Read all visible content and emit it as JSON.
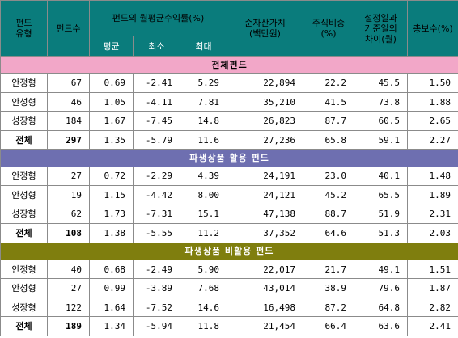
{
  "headers": {
    "fund_type": [
      "펀드",
      "유형"
    ],
    "fund_count": "펀드수",
    "monthly_return": "펀드의 월평균수익률(%)",
    "avg": "평균",
    "min": "최소",
    "max": "최대",
    "net_assets": [
      "순자산가치",
      "(백만원)"
    ],
    "stock_ratio": [
      "주식비중",
      "(%)"
    ],
    "setup_diff": [
      "설정일과",
      "기준일의",
      "차이(월)"
    ],
    "total_fee": "총보수(%)"
  },
  "sections": [
    {
      "title": "전체펀드",
      "rows": [
        {
          "type": "안정형",
          "count": "67",
          "avg": "0.69",
          "min": "-2.41",
          "max": "5.29",
          "nav": "22,894",
          "stock": "22.2",
          "months": "45.5",
          "fee": "1.50"
        },
        {
          "type": "안성형",
          "count": "46",
          "avg": "1.05",
          "min": "-4.11",
          "max": "7.81",
          "nav": "35,210",
          "stock": "41.5",
          "months": "73.8",
          "fee": "1.88"
        },
        {
          "type": "성장형",
          "count": "184",
          "avg": "1.67",
          "min": "-7.45",
          "max": "14.8",
          "nav": "26,823",
          "stock": "87.7",
          "months": "60.5",
          "fee": "2.65"
        },
        {
          "type": "전체",
          "count": "297",
          "avg": "1.35",
          "min": "-5.79",
          "max": "11.6",
          "nav": "27,236",
          "stock": "65.8",
          "months": "59.1",
          "fee": "2.27",
          "total": true
        }
      ]
    },
    {
      "title": "파생상품 활용 펀드",
      "rows": [
        {
          "type": "안정형",
          "count": "27",
          "avg": "0.72",
          "min": "-2.29",
          "max": "4.39",
          "nav": "24,191",
          "stock": "23.0",
          "months": "40.1",
          "fee": "1.48"
        },
        {
          "type": "안성형",
          "count": "19",
          "avg": "1.15",
          "min": "-4.42",
          "max": "8.00",
          "nav": "24,121",
          "stock": "45.2",
          "months": "65.5",
          "fee": "1.89"
        },
        {
          "type": "성장형",
          "count": "62",
          "avg": "1.73",
          "min": "-7.31",
          "max": "15.1",
          "nav": "47,138",
          "stock": "88.7",
          "months": "51.9",
          "fee": "2.31"
        },
        {
          "type": "전체",
          "count": "108",
          "avg": "1.38",
          "min": "-5.55",
          "max": "11.2",
          "nav": "37,352",
          "stock": "64.6",
          "months": "51.3",
          "fee": "2.03",
          "total": true
        }
      ]
    },
    {
      "title": "파생상품 비활용 펀드",
      "rows": [
        {
          "type": "안정형",
          "count": "40",
          "avg": "0.68",
          "min": "-2.49",
          "max": "5.90",
          "nav": "22,017",
          "stock": "21.7",
          "months": "49.1",
          "fee": "1.51"
        },
        {
          "type": "안성형",
          "count": "27",
          "avg": "0.99",
          "min": "-3.89",
          "max": "7.68",
          "nav": "43,014",
          "stock": "38.9",
          "months": "79.6",
          "fee": "1.87"
        },
        {
          "type": "성장형",
          "count": "122",
          "avg": "1.64",
          "min": "-7.52",
          "max": "14.6",
          "nav": "16,498",
          "stock": "87.2",
          "months": "64.8",
          "fee": "2.82"
        },
        {
          "type": "전체",
          "count": "189",
          "avg": "1.34",
          "min": "-5.94",
          "max": "11.8",
          "nav": "21,454",
          "stock": "66.4",
          "months": "63.6",
          "fee": "2.41",
          "total": true
        }
      ]
    }
  ],
  "colors": {
    "header_bg": "#0a7c7c",
    "section1_bg": "#f2a7c8",
    "section2_bg": "#6e6fb0",
    "section3_bg": "#7f7e0e",
    "grid_line": "#8b8b8b"
  }
}
